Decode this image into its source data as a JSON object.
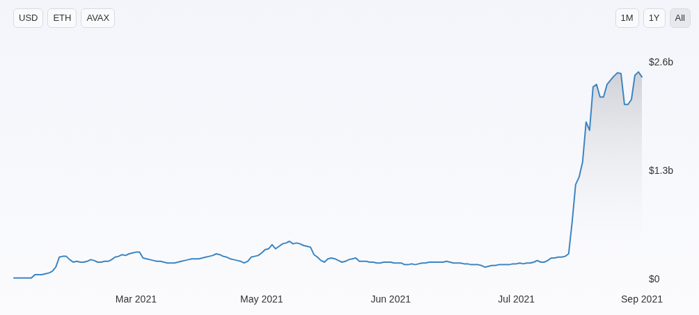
{
  "chart_data": {
    "type": "area",
    "categories": [
      null,
      null,
      null,
      null,
      null,
      null,
      null,
      null,
      null,
      null,
      null,
      null,
      null,
      null,
      null,
      null,
      null,
      null,
      null,
      null,
      null,
      null,
      null,
      null,
      null,
      null,
      null,
      null,
      null,
      null,
      null,
      null,
      null,
      null,
      null,
      "Mar 2021",
      null,
      null,
      null,
      null,
      null,
      null,
      null,
      null,
      null,
      null,
      null,
      null,
      null,
      null,
      null,
      null,
      null,
      null,
      null,
      null,
      null,
      null,
      null,
      null,
      null,
      null,
      null,
      null,
      null,
      null,
      null,
      null,
      null,
      null,
      null,
      "May 2021",
      null,
      null,
      null,
      null,
      null,
      null,
      null,
      null,
      null,
      null,
      null,
      null,
      null,
      null,
      null,
      null,
      null,
      null,
      null,
      null,
      null,
      null,
      null,
      null,
      null,
      null,
      null,
      null,
      null,
      null,
      null,
      null,
      null,
      null,
      null,
      null,
      "Jun 2021",
      null,
      null,
      null,
      null,
      null,
      null,
      null,
      null,
      null,
      null,
      null,
      null,
      null,
      null,
      null,
      null,
      null,
      null,
      null,
      null,
      null,
      null,
      null,
      null,
      null,
      null,
      null,
      null,
      null,
      null,
      null,
      null,
      null,
      null,
      null,
      "Jul 2021",
      null,
      null,
      null,
      null,
      null,
      null,
      null,
      null,
      null,
      null,
      null,
      null,
      null,
      null,
      null,
      null,
      null,
      null,
      null,
      null,
      null,
      null,
      null,
      null,
      null,
      null,
      null,
      null,
      null,
      null,
      null,
      null,
      null,
      null,
      null,
      "Sep 2021"
    ],
    "values": [
      0.01,
      0.01,
      0.01,
      0.01,
      0.01,
      0.01,
      0.05,
      0.05,
      0.05,
      0.06,
      0.07,
      0.09,
      0.14,
      0.26,
      0.27,
      0.27,
      0.23,
      0.2,
      0.21,
      0.2,
      0.2,
      0.21,
      0.23,
      0.22,
      0.2,
      0.2,
      0.21,
      0.21,
      0.23,
      0.26,
      0.27,
      0.29,
      0.28,
      0.3,
      0.31,
      0.32,
      0.32,
      0.25,
      0.24,
      0.23,
      0.22,
      0.21,
      0.21,
      0.2,
      0.19,
      0.19,
      0.19,
      0.2,
      0.21,
      0.22,
      0.23,
      0.24,
      0.24,
      0.24,
      0.25,
      0.26,
      0.27,
      0.28,
      0.3,
      0.29,
      0.27,
      0.26,
      0.24,
      0.23,
      0.22,
      0.21,
      0.19,
      0.21,
      0.26,
      0.27,
      0.28,
      0.31,
      0.35,
      0.36,
      0.41,
      0.36,
      0.39,
      0.42,
      0.43,
      0.45,
      0.42,
      0.43,
      0.42,
      0.4,
      0.39,
      0.38,
      0.29,
      0.26,
      0.22,
      0.2,
      0.24,
      0.25,
      0.24,
      0.22,
      0.2,
      0.21,
      0.23,
      0.24,
      0.25,
      0.21,
      0.21,
      0.21,
      0.2,
      0.2,
      0.19,
      0.19,
      0.2,
      0.2,
      0.2,
      0.19,
      0.19,
      0.19,
      0.17,
      0.17,
      0.18,
      0.17,
      0.18,
      0.19,
      0.19,
      0.2,
      0.2,
      0.2,
      0.2,
      0.2,
      0.21,
      0.2,
      0.19,
      0.19,
      0.19,
      0.18,
      0.18,
      0.17,
      0.17,
      0.17,
      0.16,
      0.14,
      0.15,
      0.16,
      0.16,
      0.17,
      0.17,
      0.17,
      0.17,
      0.18,
      0.18,
      0.19,
      0.18,
      0.19,
      0.19,
      0.2,
      0.22,
      0.2,
      0.2,
      0.22,
      0.25,
      0.25,
      0.26,
      0.26,
      0.27,
      0.3,
      0.68,
      1.13,
      1.22,
      1.4,
      1.88,
      1.78,
      2.3,
      2.33,
      2.18,
      2.18,
      2.33,
      2.38,
      2.43,
      2.47,
      2.46,
      2.09,
      2.09,
      2.15,
      2.44,
      2.48,
      2.42
    ],
    "color": "#3b85c1",
    "ylim": [
      0,
      2.6
    ],
    "yticks": [
      {
        "value": 0,
        "label": "$0"
      },
      {
        "value": 1.3,
        "label": "$1.3b"
      },
      {
        "value": 2.6,
        "label": "$2.6b"
      }
    ],
    "grid": false,
    "marker": "none",
    "line_style": "solid",
    "annotations": [
      "USD",
      "ETH",
      "AVAX",
      "1M",
      "1Y",
      "All"
    ]
  }
}
